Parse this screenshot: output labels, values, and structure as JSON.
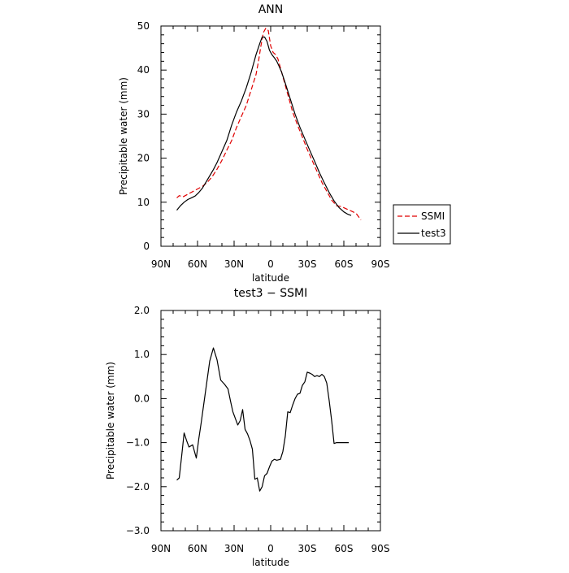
{
  "chart_data": [
    {
      "type": "line",
      "title": "ANN",
      "xlabel": "latitude",
      "ylabel": "Precipitable water (mm)",
      "x_tick_labels": [
        "90N",
        "60N",
        "30N",
        "0",
        "30S",
        "60S",
        "90S"
      ],
      "xlim": [
        -90,
        90
      ],
      "ylim": [
        0,
        50
      ],
      "y_ticks": [
        0,
        10,
        20,
        30,
        40,
        50
      ],
      "grid": false,
      "legend": {
        "placement": "right",
        "entries": [
          "SSMI",
          "test3"
        ]
      },
      "series": [
        {
          "name": "SSMI",
          "color": "#e00000",
          "dash": true,
          "x": [
            -77,
            -75,
            -72,
            -68,
            -64,
            -60,
            -56,
            -52,
            -48,
            -44,
            -40,
            -36,
            -32,
            -28,
            -24,
            -20,
            -16,
            -12,
            -10,
            -8,
            -6,
            -4,
            -2,
            0,
            2,
            4,
            6,
            8,
            10,
            14,
            18,
            22,
            26,
            30,
            34,
            38,
            42,
            46,
            50,
            54,
            58,
            62,
            66,
            70,
            74
          ],
          "values": [
            11.0,
            11.5,
            11.2,
            11.8,
            12.4,
            13.0,
            13.6,
            14.5,
            15.8,
            17.5,
            19.5,
            21.8,
            24.0,
            27.0,
            29.5,
            32.0,
            35.5,
            39.0,
            42.0,
            45.5,
            48.5,
            49.5,
            49.0,
            45.5,
            44.0,
            43.5,
            42.5,
            40.5,
            38.5,
            34.5,
            30.5,
            27.5,
            24.8,
            22.0,
            19.5,
            17.0,
            14.5,
            12.5,
            10.5,
            9.2,
            9.0,
            8.5,
            8.0,
            7.5,
            6.0
          ]
        },
        {
          "name": "test3",
          "color": "#000000",
          "dash": false,
          "x": [
            -77,
            -74,
            -71,
            -68,
            -65,
            -62,
            -59,
            -56,
            -53,
            -50,
            -47,
            -44,
            -40,
            -36,
            -32,
            -28,
            -24,
            -20,
            -16,
            -12,
            -9,
            -7,
            -5,
            -3,
            -1,
            1,
            3,
            5,
            7,
            9,
            12,
            16,
            20,
            24,
            28,
            32,
            36,
            40,
            44,
            48,
            52,
            56,
            60,
            63,
            66
          ],
          "values": [
            8.2,
            9.2,
            10.0,
            10.6,
            11.0,
            11.4,
            12.2,
            13.2,
            14.6,
            16.0,
            17.4,
            19.0,
            21.5,
            24.0,
            27.5,
            30.5,
            33.0,
            36.0,
            39.5,
            43.5,
            46.0,
            47.5,
            47.5,
            46.5,
            44.5,
            43.5,
            42.8,
            42.0,
            40.8,
            39.5,
            37.0,
            33.5,
            30.0,
            27.0,
            24.4,
            21.8,
            19.3,
            16.7,
            14.4,
            12.2,
            10.3,
            8.8,
            7.8,
            7.3,
            7.0
          ]
        }
      ]
    },
    {
      "type": "line",
      "title": "test3 − SSMI",
      "xlabel": "latitude",
      "ylabel": "Precipitable water (mm)",
      "x_tick_labels": [
        "90N",
        "60N",
        "30N",
        "0",
        "30S",
        "60S",
        "90S"
      ],
      "xlim": [
        -90,
        90
      ],
      "ylim": [
        -3.0,
        2.0
      ],
      "y_ticks": [
        "-3.0",
        "-2.0",
        "-1.0",
        "0.0",
        "1.0",
        "2.0"
      ],
      "grid": false,
      "series": [
        {
          "color": "#000000",
          "x": [
            -77,
            -75,
            -73,
            -71,
            -69,
            -67,
            -64,
            -61,
            -59,
            -57,
            -55,
            -52,
            -50,
            -47,
            -44,
            -41,
            -38,
            -35,
            -33,
            -31,
            -29,
            -27,
            -25,
            -23,
            -21,
            -19,
            -17,
            -15,
            -13,
            -11,
            -9,
            -7,
            -5,
            -3,
            -1,
            1,
            3,
            5,
            8,
            10,
            12,
            14,
            16,
            18,
            20,
            22,
            24,
            26,
            28,
            30,
            32,
            34,
            36,
            38,
            40,
            42,
            44,
            46,
            48,
            50,
            52,
            54,
            56,
            58,
            60,
            62,
            64
          ],
          "values": [
            -1.85,
            -1.8,
            -1.3,
            -0.78,
            -0.95,
            -1.1,
            -1.05,
            -1.35,
            -0.92,
            -0.55,
            -0.15,
            0.45,
            0.85,
            1.15,
            0.88,
            0.42,
            0.33,
            0.22,
            -0.05,
            -0.3,
            -0.45,
            -0.6,
            -0.5,
            -0.25,
            -0.7,
            -0.8,
            -0.95,
            -1.15,
            -1.83,
            -1.8,
            -2.1,
            -2.0,
            -1.75,
            -1.7,
            -1.55,
            -1.42,
            -1.38,
            -1.4,
            -1.38,
            -1.2,
            -0.85,
            -0.3,
            -0.32,
            -0.15,
            0.0,
            0.1,
            0.12,
            0.3,
            0.38,
            0.6,
            0.58,
            0.55,
            0.5,
            0.52,
            0.5,
            0.55,
            0.5,
            0.35,
            -0.05,
            -0.5,
            -1.02,
            -1.0,
            -1.0,
            -1.0,
            -1.0,
            -1.0,
            -1.0
          ]
        }
      ]
    }
  ]
}
